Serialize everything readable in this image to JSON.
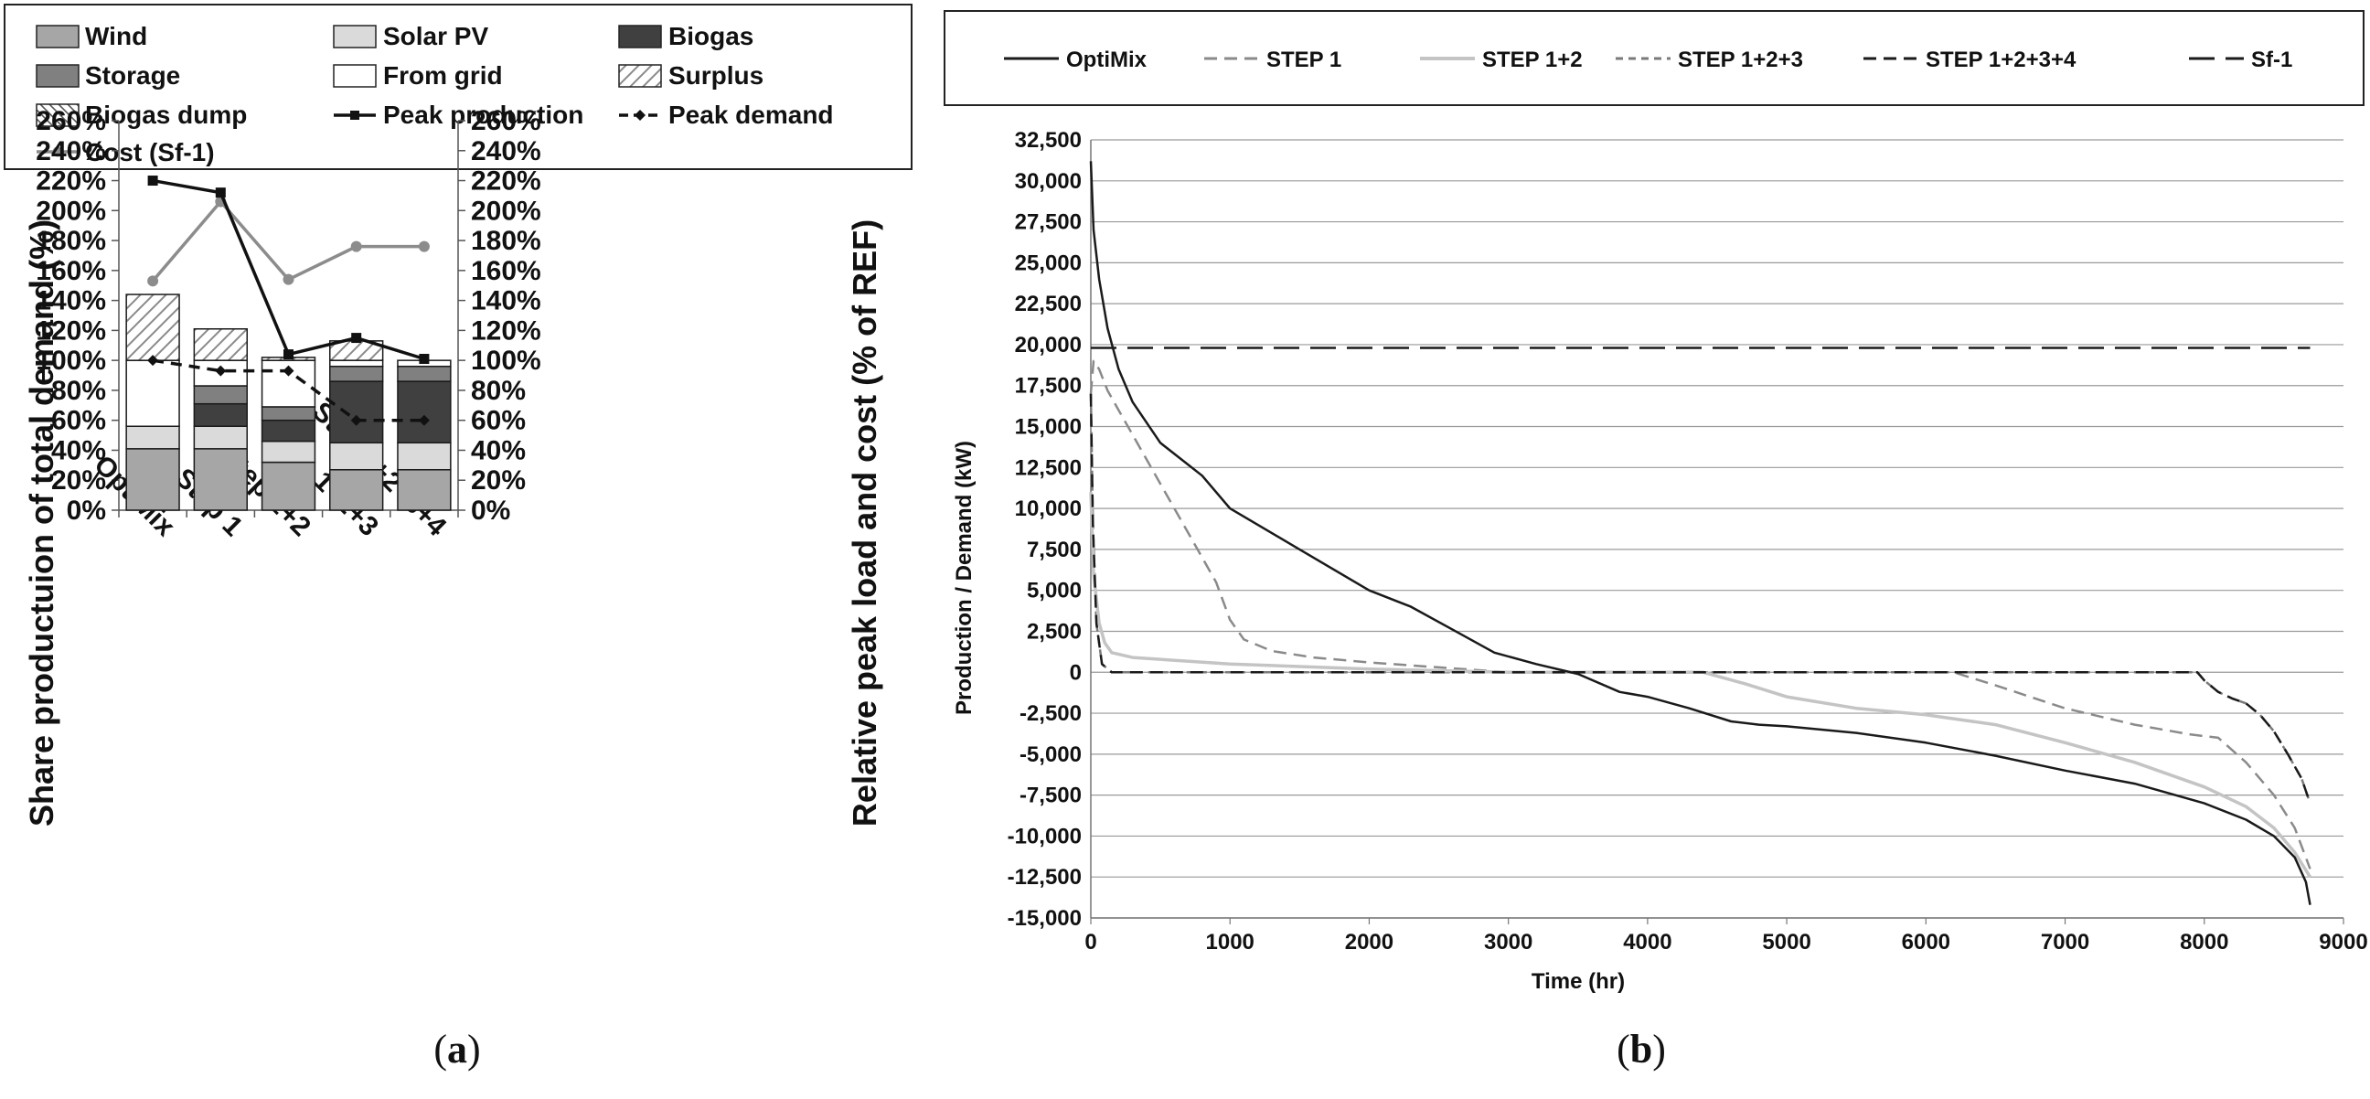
{
  "colors": {
    "wind": "#a6a6a6",
    "solar": "#dadada",
    "biogas": "#404040",
    "storage": "#808080",
    "grid": "#ffffff",
    "cost": "#8c8c8c",
    "optimix_b": "#1a1a1a",
    "step1_b": "#8a8a8a",
    "step12_b": "#c4c4c4",
    "step123_b": "#7a7a7a",
    "step1234_b": "#1a1a1a",
    "sf1_b": "#1a1a1a"
  },
  "chart_data": [
    {
      "id": "a",
      "type": "bar",
      "panel_label": {
        "open": "(",
        "letter": "a",
        "close": ")"
      },
      "legend": {
        "wind": "Wind",
        "solar": "Solar PV",
        "biogas": "Biogas",
        "storage": "Storage",
        "grid": "From grid",
        "surplus": "Surplus",
        "dump": "Biogas dump",
        "peak_prod": "Peak production",
        "peak_dem": "Peak demand",
        "cost": "Cost (Sf-1)"
      },
      "categories": [
        "OptiMix",
        "Step 1",
        "Step 1+2",
        "Step 1+2+3",
        "Step 1+2+3+4"
      ],
      "stack_series": [
        {
          "key": "wind",
          "name": "Wind",
          "values": [
            41,
            41,
            32,
            27,
            27
          ]
        },
        {
          "key": "solar",
          "name": "Solar PV",
          "values": [
            15,
            15,
            14,
            18,
            18
          ]
        },
        {
          "key": "biogas",
          "name": "Biogas",
          "values": [
            0,
            15,
            14,
            41,
            41
          ]
        },
        {
          "key": "storage",
          "name": "Storage",
          "values": [
            0,
            12,
            9,
            10,
            10
          ]
        },
        {
          "key": "grid",
          "name": "From grid",
          "values": [
            44,
            17,
            31,
            4,
            4
          ]
        },
        {
          "key": "surplus",
          "name": "Surplus",
          "values": [
            44,
            21,
            2,
            13,
            0
          ]
        },
        {
          "key": "dump",
          "name": "Biogas dump",
          "values": [
            0,
            0,
            0,
            0,
            0
          ]
        }
      ],
      "line_series": [
        {
          "key": "peak_prod",
          "name": "Peak production",
          "values": [
            220,
            212,
            104,
            115,
            101
          ]
        },
        {
          "key": "peak_dem",
          "name": "Peak demand",
          "values": [
            100,
            93,
            93,
            60,
            60
          ]
        },
        {
          "key": "cost",
          "name": "Cost (Sf-1)",
          "values": [
            153,
            206,
            154,
            176,
            176
          ]
        }
      ],
      "y_ticks": [
        "0%",
        "20%",
        "40%",
        "60%",
        "80%",
        "100%",
        "120%",
        "140%",
        "160%",
        "180%",
        "200%",
        "220%",
        "240%",
        "260%"
      ],
      "ylim": [
        0,
        260
      ],
      "ylabel": "Share productuion of total demand (%)",
      "y2label": "Relative peak load and cost (% of REF)"
    },
    {
      "id": "b",
      "type": "line",
      "panel_label": {
        "open": "(",
        "letter": "b",
        "close": ")"
      },
      "xlabel": "Time (hr)",
      "ylabel": "Production  / Demand (kW)",
      "xlim": [
        0,
        9000
      ],
      "ylim": [
        -15000,
        32500
      ],
      "x_ticks": [
        "0",
        "1000",
        "2000",
        "3000",
        "4000",
        "5000",
        "6000",
        "7000",
        "8000",
        "9000"
      ],
      "y_ticks": [
        "-15,000",
        "-12,500",
        "-10,000",
        "-7,500",
        "-5,000",
        "-2,500",
        "0",
        "2,500",
        "5,000",
        "7,500",
        "10,000",
        "12,500",
        "15,000",
        "17,500",
        "20,000",
        "22,500",
        "25,000",
        "27,500",
        "30,000",
        "32,500"
      ],
      "series": [
        {
          "key": "optimix_b",
          "name": "OptiMix",
          "dash": "",
          "width": 2.5,
          "x": [
            0,
            20,
            60,
            120,
            200,
            300,
            500,
            800,
            1000,
            1500,
            2000,
            2300,
            2600,
            2900,
            3200,
            3500,
            3800,
            4000,
            4300,
            4600,
            4800,
            5000,
            5500,
            6000,
            6500,
            7000,
            7500,
            8000,
            8300,
            8500,
            8650,
            8730,
            8760
          ],
          "y": [
            31200,
            27000,
            24000,
            21000,
            18500,
            16500,
            14000,
            12000,
            10000,
            7500,
            5000,
            4000,
            2600,
            1200,
            500,
            -100,
            -1200,
            -1500,
            -2200,
            -3000,
            -3200,
            -3300,
            -3700,
            -4300,
            -5100,
            -6000,
            -6800,
            -8000,
            -9000,
            -10000,
            -11300,
            -12800,
            -14200
          ]
        },
        {
          "key": "step1_b",
          "name": "STEP 1",
          "dash": "14 8",
          "width": 2.5,
          "x": [
            0,
            20,
            60,
            120,
            200,
            300,
            500,
            700,
            900,
            1000,
            1100,
            1300,
            1600,
            2000,
            2500,
            3000,
            6200,
            6500,
            7000,
            7500,
            7900,
            8100,
            8300,
            8500,
            8650,
            8760
          ],
          "y": [
            17000,
            19000,
            18500,
            17200,
            16000,
            14500,
            11500,
            8500,
            5500,
            3200,
            2000,
            1300,
            900,
            600,
            300,
            0,
            0,
            -800,
            -2200,
            -3200,
            -3800,
            -4000,
            -5500,
            -7500,
            -9500,
            -12000
          ]
        },
        {
          "key": "step12_b",
          "name": "STEP 1+2",
          "dash": "",
          "width": 3.5,
          "x": [
            0,
            20,
            60,
            100,
            150,
            300,
            1000,
            2000,
            3000,
            4400,
            4700,
            5000,
            5500,
            6000,
            6500,
            7000,
            7500,
            8000,
            8300,
            8500,
            8650,
            8760
          ],
          "y": [
            11000,
            6000,
            3000,
            1800,
            1200,
            900,
            500,
            200,
            0,
            0,
            -700,
            -1500,
            -2200,
            -2600,
            -3200,
            -4300,
            -5500,
            -7000,
            -8200,
            -9500,
            -11000,
            -12500
          ]
        },
        {
          "key": "step123_b",
          "name": "STEP 1+2+3",
          "dash": "8 6",
          "width": 2.5,
          "x": [
            0,
            15,
            40,
            80,
            150,
            7950,
            8000,
            8100,
            8200,
            8300,
            8400,
            8500,
            8600,
            8700,
            8760
          ],
          "y": [
            17000,
            9000,
            3000,
            500,
            0,
            0,
            -500,
            -1200,
            -1600,
            -1900,
            -2600,
            -3600,
            -5000,
            -6500,
            -8000
          ]
        },
        {
          "key": "step1234_b",
          "name": "STEP 1+2+3+4",
          "dash": "14 8",
          "width": 2.5,
          "x": [
            0,
            15,
            40,
            80,
            150,
            7950,
            8000,
            8100,
            8200,
            8300,
            8400,
            8500,
            8600,
            8700,
            8760
          ],
          "y": [
            17000,
            9000,
            3000,
            500,
            0,
            0,
            -500,
            -1200,
            -1600,
            -1900,
            -2600,
            -3600,
            -5000,
            -6500,
            -8000
          ]
        },
        {
          "key": "sf1_b",
          "name": "Sf-1",
          "dash": "28 12",
          "width": 2.5,
          "x": [
            0,
            8760
          ],
          "y": [
            19800,
            19800
          ]
        }
      ]
    }
  ]
}
